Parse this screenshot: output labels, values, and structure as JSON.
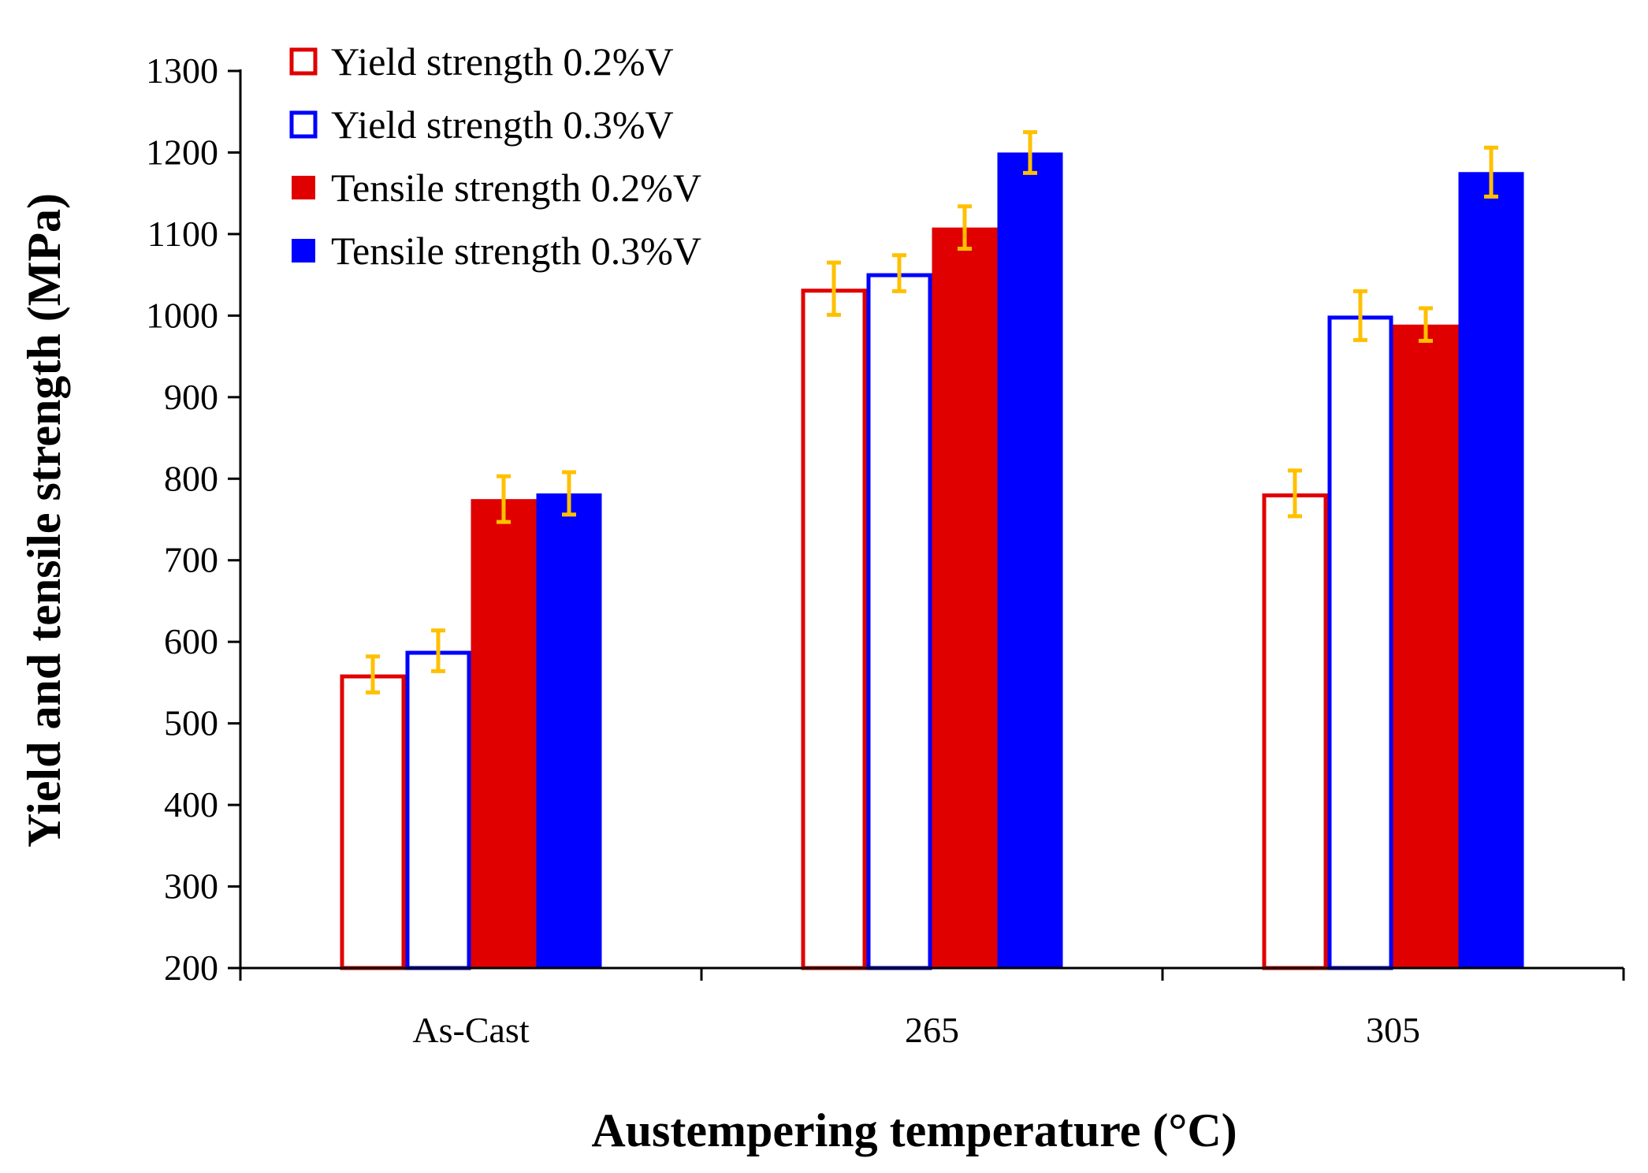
{
  "chart_data": {
    "type": "bar",
    "title": "",
    "xlabel": "Austempering temperature (°C)",
    "ylabel": "Yield and tensile strength (MPa)",
    "ylim": [
      200,
      1300
    ],
    "yticks": [
      200,
      300,
      400,
      500,
      600,
      700,
      800,
      900,
      1000,
      1100,
      1200,
      1300
    ],
    "categories": [
      "As-Cast",
      "265",
      "305"
    ],
    "legend_position": "top-left",
    "grid": false,
    "series": [
      {
        "name": "Yield strength 0.2%V",
        "style": "outline",
        "color": "#e00000",
        "values": [
          560,
          1033,
          782
        ],
        "errors": [
          22,
          32,
          28
        ]
      },
      {
        "name": "Yield strength 0.3%V",
        "style": "outline",
        "color": "#0000ff",
        "values": [
          589,
          1052,
          1000
        ],
        "errors": [
          25,
          22,
          30
        ]
      },
      {
        "name": "Tensile strength 0.2%V",
        "style": "filled",
        "color": "#e00000",
        "values": [
          775,
          1108,
          989
        ],
        "errors": [
          28,
          26,
          20
        ]
      },
      {
        "name": "Tensile strength 0.3%V",
        "style": "filled",
        "color": "#0000ff",
        "values": [
          782,
          1200,
          1176
        ],
        "errors": [
          26,
          25,
          30
        ]
      }
    ],
    "error_bar_color": "#ffc000"
  }
}
